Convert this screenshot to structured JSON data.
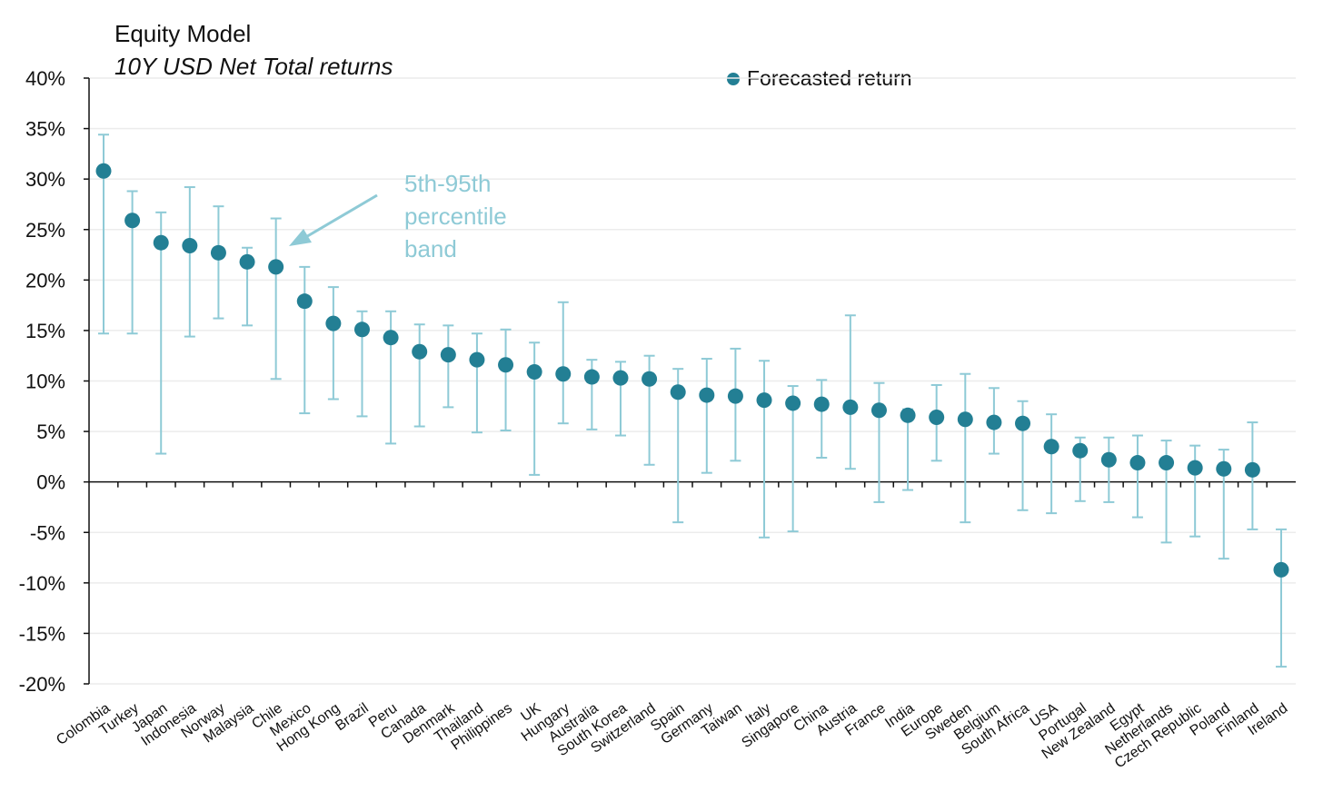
{
  "chart_data": {
    "type": "scatter",
    "title": "Equity Model",
    "subtitle": "10Y USD Net Total returns",
    "legend": [
      {
        "label": "Forecasted return",
        "placement": "top-center"
      }
    ],
    "annotation": [
      "5th-95th",
      "percentile",
      "band"
    ],
    "ylim": [
      -20,
      40
    ],
    "yticks": [
      40,
      35,
      30,
      25,
      20,
      15,
      10,
      5,
      0,
      -5,
      -10,
      -15,
      -20
    ],
    "ytick_labels": [
      "40%",
      "35%",
      "30%",
      "25%",
      "20%",
      "15%",
      "10%",
      "5%",
      "0%",
      "-5%",
      "-10%",
      "-15%",
      "-20%"
    ],
    "grid": true,
    "categories": [
      "Colombia",
      "Turkey",
      "Japan",
      "Indonesia",
      "Norway",
      "Malaysia",
      "Chile",
      "Mexico",
      "Hong Kong",
      "Brazil",
      "Peru",
      "Canada",
      "Denmark",
      "Thailand",
      "Philippines",
      "UK",
      "Hungary",
      "Australia",
      "South Korea",
      "Switzerland",
      "Spain",
      "Germany",
      "Taiwan",
      "Italy",
      "Singapore",
      "China",
      "Austria",
      "France",
      "India",
      "Europe",
      "Sweden",
      "Belgium",
      "South Africa",
      "USA",
      "Portugal",
      "New Zealand",
      "Egypt",
      "Netherlands",
      "Czech Republic",
      "Poland",
      "Finland",
      "Ireland"
    ],
    "forecast": [
      30.8,
      25.9,
      23.7,
      23.4,
      22.7,
      21.8,
      21.3,
      17.9,
      15.7,
      15.1,
      14.3,
      12.9,
      12.6,
      12.1,
      11.6,
      10.9,
      10.7,
      10.4,
      10.3,
      10.2,
      8.9,
      8.6,
      8.5,
      8.1,
      7.8,
      7.7,
      7.4,
      7.1,
      6.6,
      6.4,
      6.2,
      5.9,
      5.8,
      3.5,
      3.1,
      2.2,
      1.9,
      1.9,
      1.4,
      1.3,
      1.2,
      -8.7
    ],
    "p95": [
      34.4,
      28.8,
      26.7,
      29.2,
      27.3,
      23.2,
      26.1,
      21.3,
      19.3,
      16.9,
      16.9,
      15.6,
      15.5,
      14.7,
      15.1,
      13.8,
      17.8,
      12.1,
      11.9,
      12.5,
      11.2,
      12.2,
      13.2,
      12.0,
      9.5,
      10.1,
      16.5,
      9.8,
      7.2,
      9.6,
      10.7,
      9.3,
      8.0,
      6.7,
      4.4,
      4.4,
      4.6,
      4.1,
      3.6,
      3.2,
      5.9,
      -4.7
    ],
    "p5": [
      14.7,
      14.7,
      2.8,
      14.4,
      16.2,
      15.5,
      10.2,
      6.8,
      8.2,
      6.5,
      3.8,
      5.5,
      7.4,
      4.9,
      5.1,
      0.7,
      5.8,
      5.2,
      4.6,
      1.7,
      -4.0,
      0.9,
      2.1,
      -5.5,
      -4.9,
      2.4,
      1.3,
      -2.0,
      -0.8,
      2.1,
      -4.0,
      2.8,
      -2.8,
      -3.1,
      -1.9,
      -2.0,
      -3.5,
      -6.0,
      -5.4,
      -7.6,
      -4.7,
      -18.3
    ],
    "colors": {
      "point": "#237f94",
      "band": "#8ecad6",
      "annotation": "#8ecad6",
      "grid": "#ececec"
    }
  }
}
